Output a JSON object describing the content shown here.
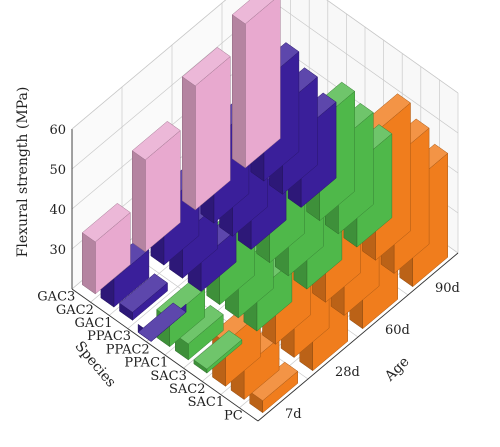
{
  "chart_data": {
    "type": "bar3d",
    "zlabel": "Flexural strength (MPa)",
    "species_label": "Species",
    "age_label": "Age",
    "zlim": [
      20,
      60
    ],
    "zticks": [
      "30",
      "40",
      "50",
      "60"
    ],
    "species": [
      "PC",
      "SAC1",
      "SAC2",
      "SAC3",
      "PPAC1",
      "PPAC2",
      "PPAC3",
      "GAC1",
      "GAC2",
      "GAC3"
    ],
    "ages": [
      "7d",
      "28d",
      "60d",
      "90d"
    ],
    "series_colors": {
      "PC": "#e8a9cf",
      "SAC": "#3a1f9a",
      "PPAC": "#4fb84a",
      "GAC": "#f07d1d"
    },
    "values": [
      [
        33,
        43,
        51,
        56
      ],
      [
        27,
        35,
        41,
        45
      ],
      [
        22,
        31,
        37,
        42
      ],
      [
        18,
        28,
        34,
        39
      ],
      [
        27,
        36,
        42,
        45
      ],
      [
        24,
        33,
        39,
        43
      ],
      [
        21,
        30,
        36,
        41
      ],
      [
        31,
        42,
        49,
        52
      ],
      [
        28,
        38,
        45,
        49
      ],
      [
        23,
        35,
        43,
        46
      ]
    ]
  }
}
